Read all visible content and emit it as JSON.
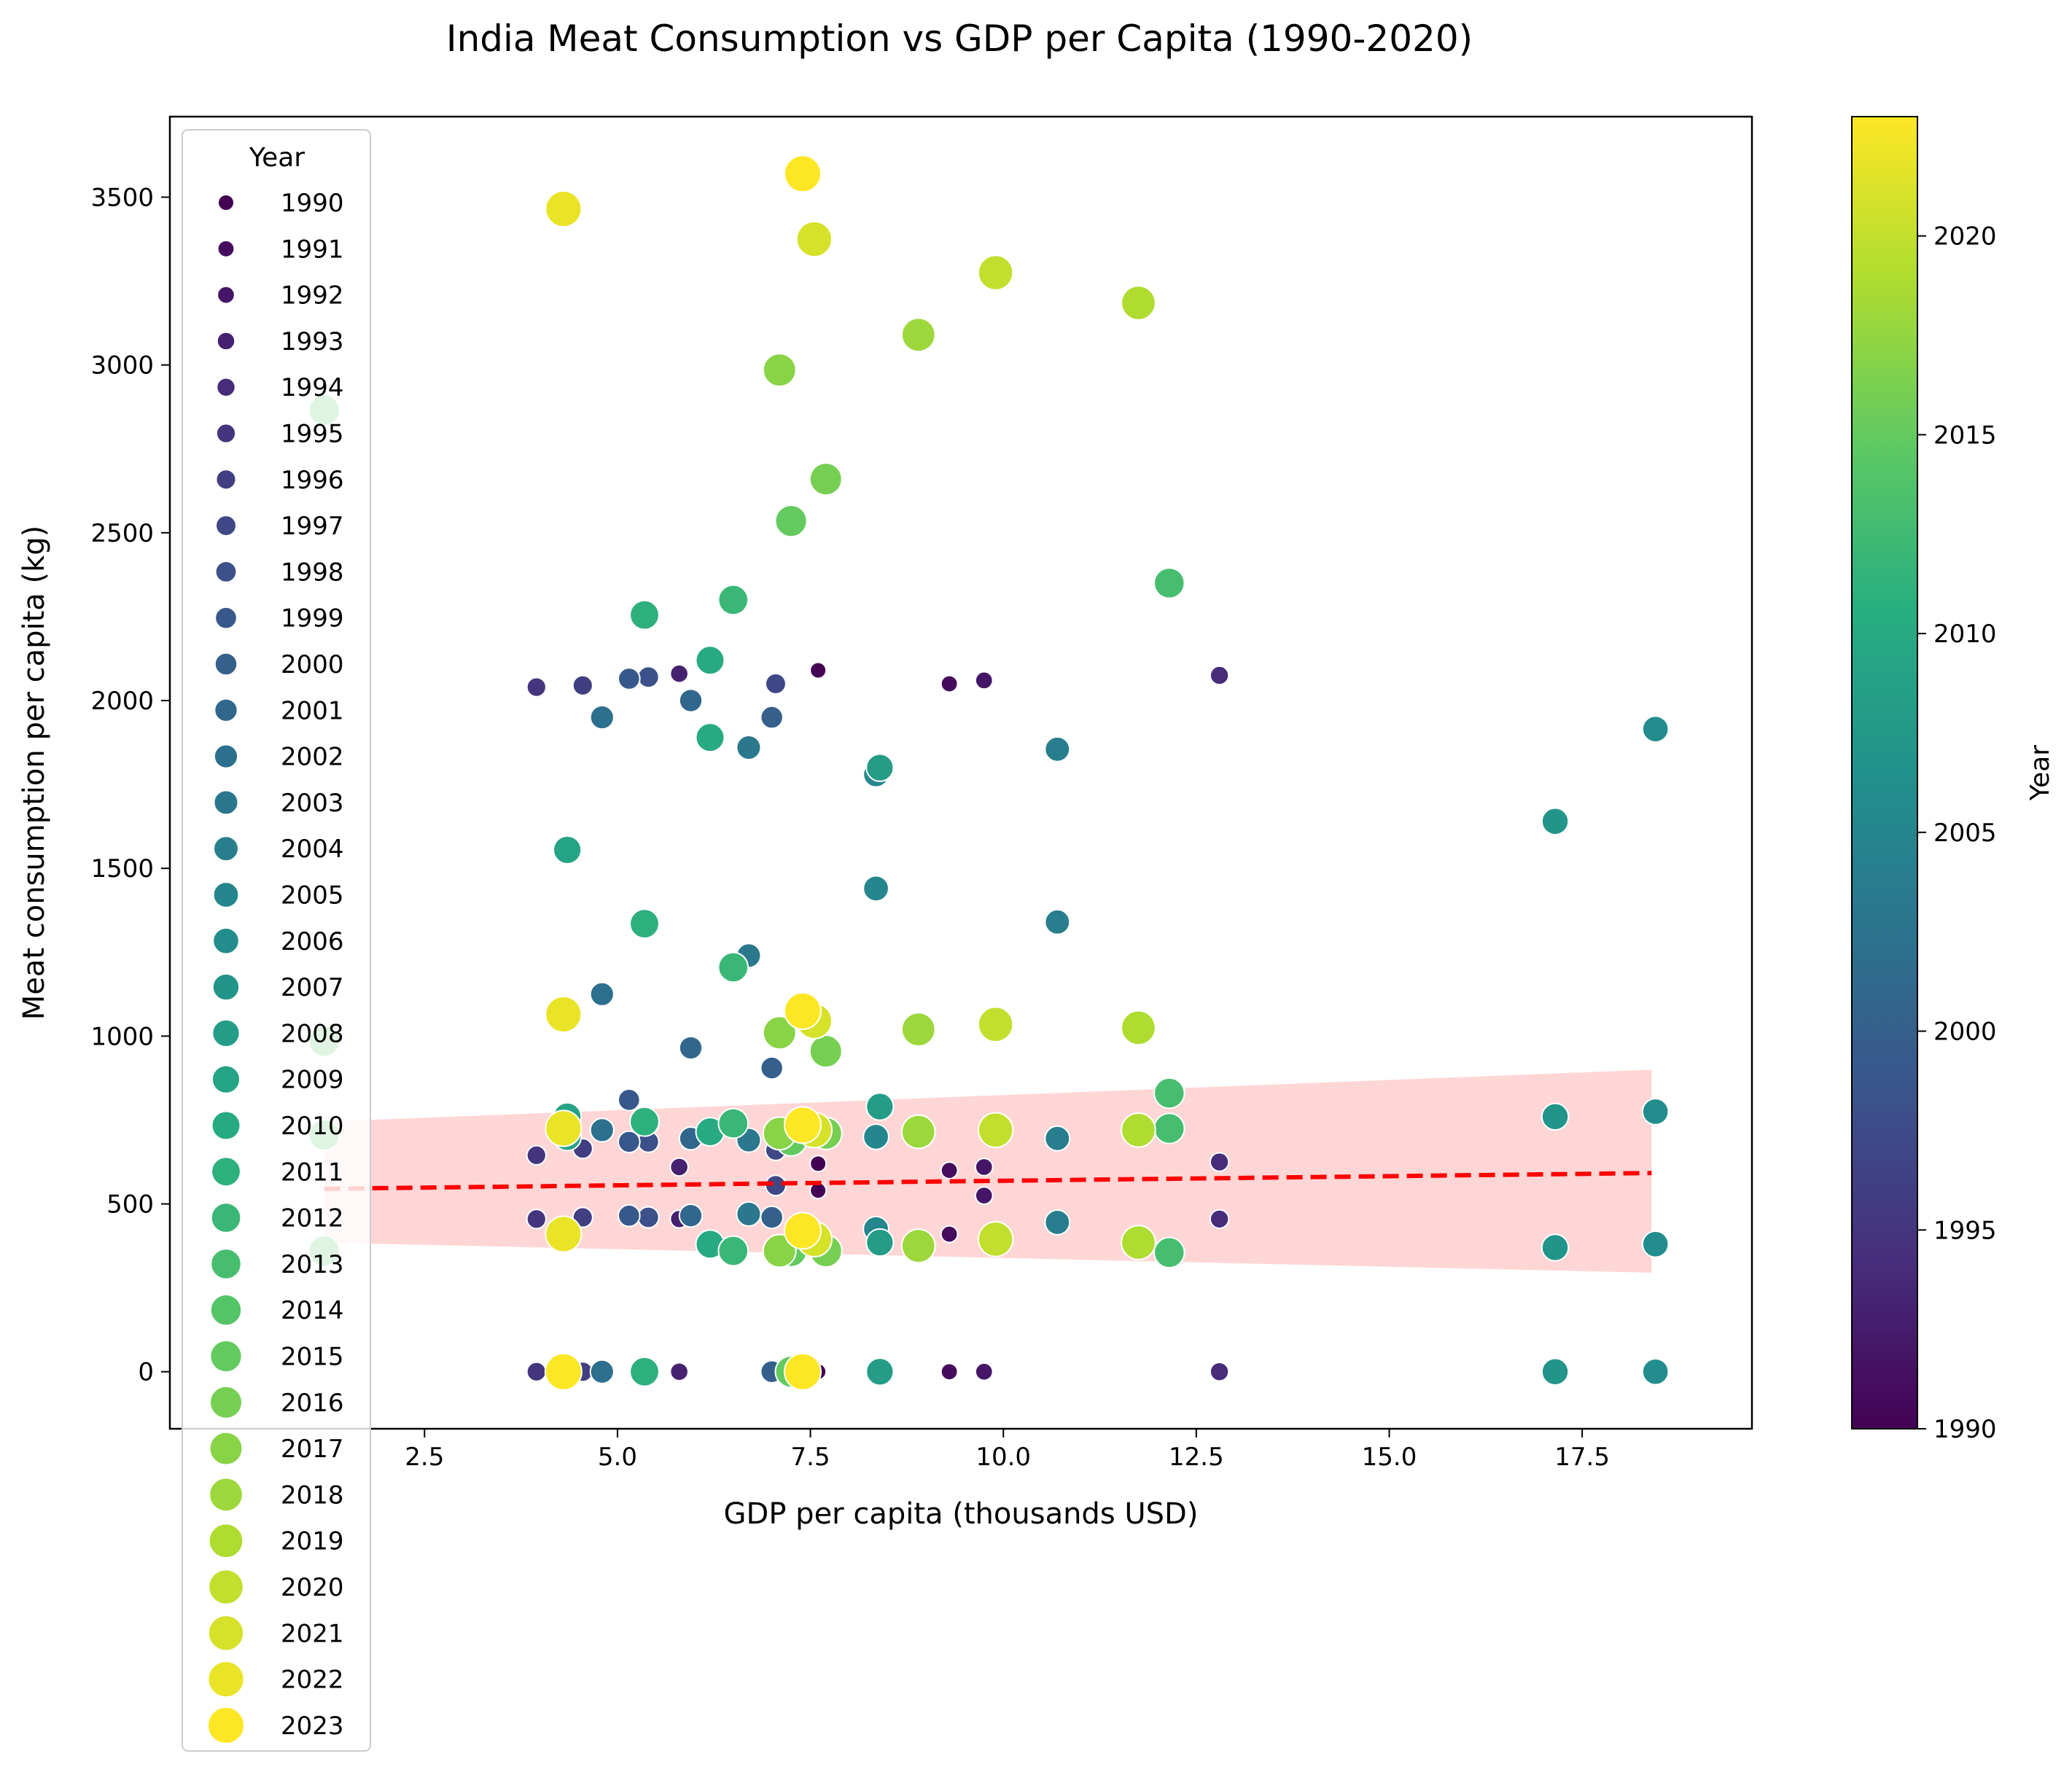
{
  "chart_data": {
    "type": "scatter",
    "title": "India Meat Consumption vs GDP per Capita (1990-2020)",
    "xlabel": "GDP per capita (thousands USD)",
    "ylabel": "Meat consumption per capita (kg)",
    "xlim": [
      -0.8,
      19.7
    ],
    "ylim": [
      -170,
      3740
    ],
    "x_ticks": [
      2.5,
      5.0,
      7.5,
      10.0,
      12.5,
      15.0,
      17.5
    ],
    "x_tick_labels": [
      "2.5",
      "5.0",
      "7.5",
      "10.0",
      "12.5",
      "15.0",
      "17.5"
    ],
    "y_ticks": [
      0,
      500,
      1000,
      1500,
      2000,
      2500,
      3000,
      3500
    ],
    "y_tick_labels": [
      "0",
      "500",
      "1000",
      "1500",
      "2000",
      "2500",
      "3000",
      "3500"
    ],
    "grid": false,
    "colormap": "viridis",
    "color_range": [
      1990,
      2023
    ],
    "colorbar": {
      "label": "Year",
      "ticks": [
        1990,
        1995,
        2000,
        2005,
        2010,
        2015,
        2020
      ],
      "tick_labels": [
        "1990",
        "1995",
        "2000",
        "2005",
        "2010",
        "2015",
        "2020"
      ]
    },
    "legend": {
      "title": "Year",
      "placement": "upper-left",
      "entries": [
        "1990",
        "1991",
        "1992",
        "1993",
        "1994",
        "1995",
        "1996",
        "1997",
        "1998",
        "1999",
        "2000",
        "2001",
        "2002",
        "2003",
        "2004",
        "2005",
        "2006",
        "2007",
        "2008",
        "2009",
        "2010",
        "2011",
        "2012",
        "2013",
        "2014",
        "2015",
        "2016",
        "2017",
        "2018",
        "2019",
        "2020",
        "2021",
        "2022",
        "2023"
      ]
    },
    "trend_line": {
      "style": "dashed",
      "color": "#ff0000",
      "x": [
        1.2,
        18.4
      ],
      "y": [
        545,
        592
      ]
    },
    "confidence_band": {
      "color": "#ffcccc",
      "x": [
        1.2,
        18.4
      ],
      "lower": [
        385,
        295
      ],
      "upper": [
        745,
        900
      ]
    },
    "points": [
      {
        "year": 1990,
        "x": 7.6,
        "y": 2090
      },
      {
        "year": 1990,
        "x": 7.6,
        "y": 620
      },
      {
        "year": 1990,
        "x": 7.6,
        "y": 540
      },
      {
        "year": 1990,
        "x": 7.6,
        "y": 0
      },
      {
        "year": 1991,
        "x": 9.3,
        "y": 2050
      },
      {
        "year": 1991,
        "x": 9.3,
        "y": 600
      },
      {
        "year": 1991,
        "x": 9.3,
        "y": 410
      },
      {
        "year": 1991,
        "x": 9.3,
        "y": 0
      },
      {
        "year": 1992,
        "x": 9.75,
        "y": 2060
      },
      {
        "year": 1992,
        "x": 9.75,
        "y": 610
      },
      {
        "year": 1992,
        "x": 9.75,
        "y": 525
      },
      {
        "year": 1992,
        "x": 9.75,
        "y": 0
      },
      {
        "year": 1993,
        "x": 5.8,
        "y": 2080
      },
      {
        "year": 1993,
        "x": 5.8,
        "y": 610
      },
      {
        "year": 1993,
        "x": 5.8,
        "y": 455
      },
      {
        "year": 1993,
        "x": 5.8,
        "y": 0
      },
      {
        "year": 1994,
        "x": 12.8,
        "y": 2075
      },
      {
        "year": 1994,
        "x": 12.8,
        "y": 625
      },
      {
        "year": 1994,
        "x": 12.8,
        "y": 455
      },
      {
        "year": 1994,
        "x": 12.8,
        "y": 0
      },
      {
        "year": 1995,
        "x": 3.95,
        "y": 2040
      },
      {
        "year": 1995,
        "x": 3.95,
        "y": 645
      },
      {
        "year": 1995,
        "x": 3.95,
        "y": 455
      },
      {
        "year": 1995,
        "x": 3.95,
        "y": 0
      },
      {
        "year": 1996,
        "x": 4.55,
        "y": 2045
      },
      {
        "year": 1996,
        "x": 4.55,
        "y": 665
      },
      {
        "year": 1996,
        "x": 4.55,
        "y": 460
      },
      {
        "year": 1996,
        "x": 4.55,
        "y": 0
      },
      {
        "year": 1997,
        "x": 7.05,
        "y": 2050
      },
      {
        "year": 1997,
        "x": 7.05,
        "y": 660
      },
      {
        "year": 1997,
        "x": 7.05,
        "y": 555
      },
      {
        "year": 1997,
        "x": 7.05,
        "y": 0
      },
      {
        "year": 1998,
        "x": 5.4,
        "y": 2070
      },
      {
        "year": 1998,
        "x": 5.4,
        "y": 740
      },
      {
        "year": 1998,
        "x": 5.4,
        "y": 685
      },
      {
        "year": 1998,
        "x": 5.4,
        "y": 460
      },
      {
        "year": 1999,
        "x": 5.15,
        "y": 2065
      },
      {
        "year": 1999,
        "x": 5.15,
        "y": 810
      },
      {
        "year": 1999,
        "x": 5.15,
        "y": 685
      },
      {
        "year": 1999,
        "x": 5.15,
        "y": 465
      },
      {
        "year": 2000,
        "x": 7.0,
        "y": 1950
      },
      {
        "year": 2000,
        "x": 7.0,
        "y": 905
      },
      {
        "year": 2000,
        "x": 7.0,
        "y": 460
      },
      {
        "year": 2000,
        "x": 7.0,
        "y": 0
      },
      {
        "year": 2001,
        "x": 5.95,
        "y": 2000
      },
      {
        "year": 2001,
        "x": 5.95,
        "y": 965
      },
      {
        "year": 2001,
        "x": 5.95,
        "y": 695
      },
      {
        "year": 2001,
        "x": 5.95,
        "y": 465
      },
      {
        "year": 2002,
        "x": 4.8,
        "y": 1950
      },
      {
        "year": 2002,
        "x": 4.8,
        "y": 1125
      },
      {
        "year": 2002,
        "x": 4.8,
        "y": 720
      },
      {
        "year": 2002,
        "x": 4.8,
        "y": 0
      },
      {
        "year": 2003,
        "x": 6.7,
        "y": 1860
      },
      {
        "year": 2003,
        "x": 6.7,
        "y": 1240
      },
      {
        "year": 2003,
        "x": 6.7,
        "y": 690
      },
      {
        "year": 2003,
        "x": 6.7,
        "y": 470
      },
      {
        "year": 2004,
        "x": 10.7,
        "y": 1855
      },
      {
        "year": 2004,
        "x": 10.7,
        "y": 1340
      },
      {
        "year": 2004,
        "x": 10.7,
        "y": 695
      },
      {
        "year": 2004,
        "x": 10.7,
        "y": 445
      },
      {
        "year": 2005,
        "x": 8.35,
        "y": 1780
      },
      {
        "year": 2005,
        "x": 8.35,
        "y": 1440
      },
      {
        "year": 2005,
        "x": 8.35,
        "y": 700
      },
      {
        "year": 2005,
        "x": 8.35,
        "y": 425
      },
      {
        "year": 2006,
        "x": 18.45,
        "y": 1915
      },
      {
        "year": 2006,
        "x": 18.45,
        "y": 775
      },
      {
        "year": 2006,
        "x": 18.45,
        "y": 380
      },
      {
        "year": 2006,
        "x": 18.45,
        "y": 0
      },
      {
        "year": 2007,
        "x": 17.15,
        "y": 1640
      },
      {
        "year": 2007,
        "x": 17.15,
        "y": 760
      },
      {
        "year": 2007,
        "x": 17.15,
        "y": 370
      },
      {
        "year": 2007,
        "x": 17.15,
        "y": 0
      },
      {
        "year": 2008,
        "x": 8.4,
        "y": 1800
      },
      {
        "year": 2008,
        "x": 8.4,
        "y": 790
      },
      {
        "year": 2008,
        "x": 8.4,
        "y": 385
      },
      {
        "year": 2008,
        "x": 8.4,
        "y": 0
      },
      {
        "year": 2009,
        "x": 4.35,
        "y": 1555
      },
      {
        "year": 2009,
        "x": 4.35,
        "y": 760
      },
      {
        "year": 2009,
        "x": 4.35,
        "y": 700
      },
      {
        "year": 2009,
        "x": 4.35,
        "y": 0
      },
      {
        "year": 2010,
        "x": 6.2,
        "y": 2120
      },
      {
        "year": 2010,
        "x": 6.2,
        "y": 1890
      },
      {
        "year": 2010,
        "x": 6.2,
        "y": 715
      },
      {
        "year": 2010,
        "x": 6.2,
        "y": 380
      },
      {
        "year": 2011,
        "x": 5.35,
        "y": 2255
      },
      {
        "year": 2011,
        "x": 5.35,
        "y": 1335
      },
      {
        "year": 2011,
        "x": 5.35,
        "y": 745
      },
      {
        "year": 2011,
        "x": 5.35,
        "y": 0
      },
      {
        "year": 2012,
        "x": 6.5,
        "y": 2300
      },
      {
        "year": 2012,
        "x": 6.5,
        "y": 1205
      },
      {
        "year": 2012,
        "x": 6.5,
        "y": 740
      },
      {
        "year": 2012,
        "x": 6.5,
        "y": 360
      },
      {
        "year": 2013,
        "x": 12.15,
        "y": 2350
      },
      {
        "year": 2013,
        "x": 12.15,
        "y": 830
      },
      {
        "year": 2013,
        "x": 12.15,
        "y": 725
      },
      {
        "year": 2013,
        "x": 12.15,
        "y": 355
      },
      {
        "year": 2014,
        "x": 1.2,
        "y": 2865
      },
      {
        "year": 2014,
        "x": 1.2,
        "y": 985
      },
      {
        "year": 2014,
        "x": 1.2,
        "y": 705
      },
      {
        "year": 2014,
        "x": 1.2,
        "y": 360
      },
      {
        "year": 2015,
        "x": 7.25,
        "y": 2535
      },
      {
        "year": 2015,
        "x": 7.25,
        "y": 690
      },
      {
        "year": 2015,
        "x": 7.25,
        "y": 360
      },
      {
        "year": 2015,
        "x": 7.25,
        "y": 0
      },
      {
        "year": 2016,
        "x": 7.7,
        "y": 2660
      },
      {
        "year": 2016,
        "x": 7.7,
        "y": 955
      },
      {
        "year": 2016,
        "x": 7.7,
        "y": 710
      },
      {
        "year": 2016,
        "x": 7.7,
        "y": 360
      },
      {
        "year": 2017,
        "x": 7.1,
        "y": 2985
      },
      {
        "year": 2017,
        "x": 7.1,
        "y": 1010
      },
      {
        "year": 2017,
        "x": 7.1,
        "y": 710
      },
      {
        "year": 2017,
        "x": 7.1,
        "y": 360
      },
      {
        "year": 2018,
        "x": 8.9,
        "y": 3090
      },
      {
        "year": 2018,
        "x": 8.9,
        "y": 1020
      },
      {
        "year": 2018,
        "x": 8.9,
        "y": 715
      },
      {
        "year": 2018,
        "x": 8.9,
        "y": 375
      },
      {
        "year": 2019,
        "x": 11.75,
        "y": 3185
      },
      {
        "year": 2019,
        "x": 11.75,
        "y": 1025
      },
      {
        "year": 2019,
        "x": 11.75,
        "y": 720
      },
      {
        "year": 2019,
        "x": 11.75,
        "y": 385
      },
      {
        "year": 2020,
        "x": 9.9,
        "y": 3275
      },
      {
        "year": 2020,
        "x": 9.9,
        "y": 1035
      },
      {
        "year": 2020,
        "x": 9.9,
        "y": 720
      },
      {
        "year": 2020,
        "x": 9.9,
        "y": 395
      },
      {
        "year": 2021,
        "x": 7.55,
        "y": 3375
      },
      {
        "year": 2021,
        "x": 7.55,
        "y": 1045
      },
      {
        "year": 2021,
        "x": 7.55,
        "y": 720
      },
      {
        "year": 2021,
        "x": 7.55,
        "y": 395
      },
      {
        "year": 2022,
        "x": 4.3,
        "y": 3465
      },
      {
        "year": 2022,
        "x": 4.3,
        "y": 1065
      },
      {
        "year": 2022,
        "x": 4.3,
        "y": 725
      },
      {
        "year": 2022,
        "x": 4.3,
        "y": 410
      },
      {
        "year": 2023,
        "x": 7.4,
        "y": 3570
      },
      {
        "year": 2023,
        "x": 7.4,
        "y": 1075
      },
      {
        "year": 2023,
        "x": 7.4,
        "y": 735
      },
      {
        "year": 2023,
        "x": 7.4,
        "y": 420
      },
      {
        "year": 2023,
        "x": 4.3,
        "y": 0
      },
      {
        "year": 2023,
        "x": 7.4,
        "y": 0
      }
    ]
  }
}
